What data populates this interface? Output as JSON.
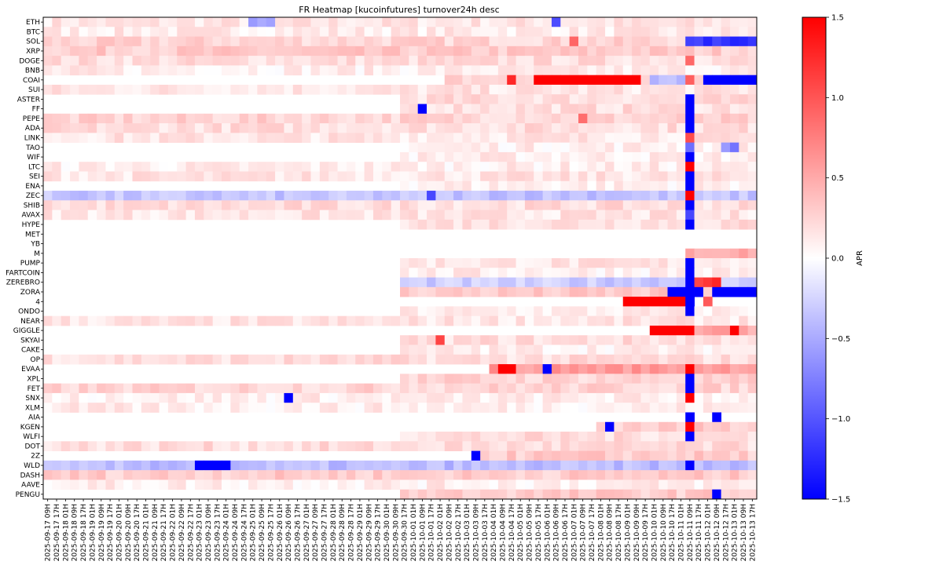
{
  "chart_data": {
    "type": "heatmap",
    "title": "FR Heatmap [kucoinfutures] turnover24h desc",
    "colorbar_label": "APR",
    "colormap": "bwr",
    "colors": {
      "low": "#0000ff",
      "mid": "#ffffff",
      "high": "#ff0000",
      "frame": "#000000"
    },
    "vmin": -1.5,
    "vmax": 1.5,
    "colorbar_ticks": [
      "-1.5",
      "-1.0",
      "-0.5",
      "0.0",
      "0.5",
      "1.0",
      "1.5"
    ],
    "rows": [
      "ETH",
      "BTC",
      "SOL",
      "XRP",
      "DOGE",
      "BNB",
      "COAI",
      "SUI",
      "ASTER",
      "FF",
      "PEPE",
      "ADA",
      "LINK",
      "TAO",
      "WIF",
      "LTC",
      "SEI",
      "ENA",
      "ZEC",
      "SHIB",
      "AVAX",
      "HYPE",
      "MET",
      "YB",
      "M",
      "PUMP",
      "FARTCOIN",
      "ZEREBRO",
      "ZORA",
      "4",
      "ONDO",
      "NEAR",
      "GIGGLE",
      "SKYAI",
      "CAKE",
      "OP",
      "EVAA",
      "XPL",
      "FET",
      "SNX",
      "XLM",
      "AIA",
      "KGEN",
      "WLFI",
      "DOT",
      "2Z",
      "WLD",
      "DASH",
      "AAVE",
      "PENGU"
    ],
    "x_ticks": [
      "2025-09-17 09H",
      "2025-09-17 17H",
      "2025-09-18 01H",
      "2025-09-18 09H",
      "2025-09-18 17H",
      "2025-09-19 01H",
      "2025-09-19 09H",
      "2025-09-19 17H",
      "2025-09-20 01H",
      "2025-09-20 09H",
      "2025-09-20 17H",
      "2025-09-21 01H",
      "2025-09-21 09H",
      "2025-09-21 17H",
      "2025-09-22 01H",
      "2025-09-22 09H",
      "2025-09-22 17H",
      "2025-09-23 01H",
      "2025-09-23 09H",
      "2025-09-23 17H",
      "2025-09-24 01H",
      "2025-09-24 09H",
      "2025-09-24 17H",
      "2025-09-25 01H",
      "2025-09-25 09H",
      "2025-09-25 17H",
      "2025-09-26 01H",
      "2025-09-26 09H",
      "2025-09-26 17H",
      "2025-09-27 01H",
      "2025-09-27 09H",
      "2025-09-27 17H",
      "2025-09-28 01H",
      "2025-09-28 09H",
      "2025-09-28 17H",
      "2025-09-29 01H",
      "2025-09-29 09H",
      "2025-09-29 17H",
      "2025-09-30 01H",
      "2025-09-30 09H",
      "2025-09-30 17H",
      "2025-10-01 01H",
      "2025-10-01 09H",
      "2025-10-01 17H",
      "2025-10-02 01H",
      "2025-10-02 09H",
      "2025-10-02 17H",
      "2025-10-03 01H",
      "2025-10-03 09H",
      "2025-10-03 17H",
      "2025-10-04 01H",
      "2025-10-04 09H",
      "2025-10-04 17H",
      "2025-10-05 01H",
      "2025-10-05 09H",
      "2025-10-05 17H",
      "2025-10-06 01H",
      "2025-10-06 09H",
      "2025-10-06 17H",
      "2025-10-07 01H",
      "2025-10-07 09H",
      "2025-10-07 17H",
      "2025-10-08 01H",
      "2025-10-08 09H",
      "2025-10-08 17H",
      "2025-10-09 01H",
      "2025-10-09 09H",
      "2025-10-09 17H",
      "2025-10-10 01H",
      "2025-10-10 09H",
      "2025-10-10 17H",
      "2025-10-11 01H",
      "2025-10-11 09H",
      "2025-10-11 17H",
      "2025-10-12 01H",
      "2025-10-12 09H",
      "2025-10-12 17H",
      "2025-10-13 01H",
      "2025-10-13 09H",
      "2025-10-13 17H"
    ],
    "values_note": "approximate per-cell APR values estimated from colour; null = no data",
    "segments": [
      {
        "row": "ETH",
        "from": 0,
        "to": 79,
        "value": 0.15
      },
      {
        "row": "ETH",
        "from": 57,
        "to": 57,
        "value": -1.0
      },
      {
        "row": "ETH",
        "from": 23,
        "to": 25,
        "value": -0.6
      },
      {
        "row": "BTC",
        "from": 0,
        "to": 79,
        "value": 0.12
      },
      {
        "row": "SOL",
        "from": 0,
        "to": 79,
        "value": 0.25
      },
      {
        "row": "SOL",
        "from": 59,
        "to": 59,
        "value": 1.0
      },
      {
        "row": "SOL",
        "from": 72,
        "to": 79,
        "value": -1.2
      },
      {
        "row": "XRP",
        "from": 0,
        "to": 79,
        "value": 0.3
      },
      {
        "row": "DOGE",
        "from": 0,
        "to": 79,
        "value": 0.2
      },
      {
        "row": "DOGE",
        "from": 72,
        "to": 72,
        "value": 1.0
      },
      {
        "row": "BNB",
        "from": 0,
        "to": 79,
        "value": 0.1
      },
      {
        "row": "COAI",
        "from": 45,
        "to": 79,
        "value": 0.25
      },
      {
        "row": "COAI",
        "from": 52,
        "to": 52,
        "value": 1.2
      },
      {
        "row": "COAI",
        "from": 55,
        "to": 66,
        "value": 1.5
      },
      {
        "row": "COAI",
        "from": 68,
        "to": 71,
        "value": -0.4
      },
      {
        "row": "COAI",
        "from": 72,
        "to": 72,
        "value": 1.0
      },
      {
        "row": "COAI",
        "from": 74,
        "to": 79,
        "value": -1.5
      },
      {
        "row": "SUI",
        "from": 0,
        "to": 79,
        "value": 0.15
      },
      {
        "row": "ASTER",
        "from": 40,
        "to": 79,
        "value": 0.2
      },
      {
        "row": "ASTER",
        "from": 72,
        "to": 72,
        "value": -1.5
      },
      {
        "row": "FF",
        "from": 40,
        "to": 79,
        "value": 0.2
      },
      {
        "row": "FF",
        "from": 42,
        "to": 42,
        "value": -1.5
      },
      {
        "row": "FF",
        "from": 72,
        "to": 72,
        "value": -1.5
      },
      {
        "row": "PEPE",
        "from": 0,
        "to": 79,
        "value": 0.25
      },
      {
        "row": "PEPE",
        "from": 60,
        "to": 60,
        "value": 0.8
      },
      {
        "row": "PEPE",
        "from": 72,
        "to": 72,
        "value": -1.5
      },
      {
        "row": "ADA",
        "from": 0,
        "to": 79,
        "value": 0.2
      },
      {
        "row": "ADA",
        "from": 72,
        "to": 72,
        "value": -1.5
      },
      {
        "row": "LINK",
        "from": 0,
        "to": 79,
        "value": 0.15
      },
      {
        "row": "LINK",
        "from": 72,
        "to": 72,
        "value": 1.0
      },
      {
        "row": "TAO",
        "from": 40,
        "to": 79,
        "value": 0.1
      },
      {
        "row": "TAO",
        "from": 72,
        "to": 72,
        "value": -0.8
      },
      {
        "row": "TAO",
        "from": 76,
        "to": 77,
        "value": -0.7
      },
      {
        "row": "WIF",
        "from": 40,
        "to": 79,
        "value": 0.1
      },
      {
        "row": "WIF",
        "from": 72,
        "to": 72,
        "value": -1.5
      },
      {
        "row": "LTC",
        "from": 0,
        "to": 79,
        "value": 0.1
      },
      {
        "row": "LTC",
        "from": 72,
        "to": 72,
        "value": 1.5
      },
      {
        "row": "SEI",
        "from": 0,
        "to": 79,
        "value": 0.15
      },
      {
        "row": "SEI",
        "from": 72,
        "to": 72,
        "value": -1.5
      },
      {
        "row": "ENA",
        "from": 40,
        "to": 79,
        "value": 0.1
      },
      {
        "row": "ENA",
        "from": 72,
        "to": 72,
        "value": -1.5
      },
      {
        "row": "ZEC",
        "from": 0,
        "to": 79,
        "value": -0.35
      },
      {
        "row": "ZEC",
        "from": 72,
        "to": 72,
        "value": 1.5
      },
      {
        "row": "ZEC",
        "from": 43,
        "to": 43,
        "value": -1.0
      },
      {
        "row": "SHIB",
        "from": 0,
        "to": 79,
        "value": 0.2
      },
      {
        "row": "SHIB",
        "from": 72,
        "to": 72,
        "value": -1.5
      },
      {
        "row": "AVAX",
        "from": 0,
        "to": 79,
        "value": 0.15
      },
      {
        "row": "AVAX",
        "from": 72,
        "to": 72,
        "value": -1.2
      },
      {
        "row": "HYPE",
        "from": 40,
        "to": 79,
        "value": 0.2
      },
      {
        "row": "HYPE",
        "from": 72,
        "to": 72,
        "value": -1.5
      },
      {
        "row": "M",
        "from": 72,
        "to": 79,
        "value": 0.5
      },
      {
        "row": "PUMP",
        "from": 40,
        "to": 79,
        "value": 0.15
      },
      {
        "row": "PUMP",
        "from": 72,
        "to": 72,
        "value": -1.5
      },
      {
        "row": "FARTCOIN",
        "from": 40,
        "to": 79,
        "value": 0.1
      },
      {
        "row": "FARTCOIN",
        "from": 72,
        "to": 72,
        "value": -1.5
      },
      {
        "row": "ZEREBRO",
        "from": 40,
        "to": 79,
        "value": -0.3
      },
      {
        "row": "ZEREBRO",
        "from": 72,
        "to": 72,
        "value": -1.5
      },
      {
        "row": "ZEREBRO",
        "from": 73,
        "to": 75,
        "value": 1.2
      },
      {
        "row": "ZORA",
        "from": 40,
        "to": 79,
        "value": 0.3
      },
      {
        "row": "ZORA",
        "from": 70,
        "to": 73,
        "value": -1.5
      },
      {
        "row": "ZORA",
        "from": 75,
        "to": 79,
        "value": -1.5
      },
      {
        "row": "4",
        "from": 65,
        "to": 71,
        "value": 1.5
      },
      {
        "row": "4",
        "from": 72,
        "to": 72,
        "value": -1.5
      },
      {
        "row": "4",
        "from": 74,
        "to": 74,
        "value": 1.0
      },
      {
        "row": "ONDO",
        "from": 40,
        "to": 79,
        "value": 0.1
      },
      {
        "row": "ONDO",
        "from": 72,
        "to": 72,
        "value": -1.5
      },
      {
        "row": "NEAR",
        "from": 0,
        "to": 79,
        "value": 0.15
      },
      {
        "row": "GIGGLE",
        "from": 68,
        "to": 79,
        "value": 0.5
      },
      {
        "row": "GIGGLE",
        "from": 68,
        "to": 71,
        "value": 1.5
      },
      {
        "row": "GIGGLE",
        "from": 72,
        "to": 72,
        "value": 1.5
      },
      {
        "row": "GIGGLE",
        "from": 77,
        "to": 77,
        "value": 1.5
      },
      {
        "row": "SKYAI",
        "from": 40,
        "to": 79,
        "value": 0.2
      },
      {
        "row": "SKYAI",
        "from": 44,
        "to": 44,
        "value": 1.0
      },
      {
        "row": "CAKE",
        "from": 40,
        "to": 79,
        "value": 0.1
      },
      {
        "row": "OP",
        "from": 0,
        "to": 79,
        "value": 0.2
      },
      {
        "row": "EVAA",
        "from": 50,
        "to": 79,
        "value": 0.6
      },
      {
        "row": "EVAA",
        "from": 51,
        "to": 52,
        "value": 1.5
      },
      {
        "row": "EVAA",
        "from": 56,
        "to": 56,
        "value": -1.5
      },
      {
        "row": "EVAA",
        "from": 72,
        "to": 72,
        "value": 1.5
      },
      {
        "row": "XPL",
        "from": 40,
        "to": 79,
        "value": 0.25
      },
      {
        "row": "XPL",
        "from": 72,
        "to": 72,
        "value": -1.5
      },
      {
        "row": "FET",
        "from": 0,
        "to": 79,
        "value": 0.25
      },
      {
        "row": "FET",
        "from": 72,
        "to": 72,
        "value": -1.5
      },
      {
        "row": "SNX",
        "from": 0,
        "to": 79,
        "value": 0.1
      },
      {
        "row": "SNX",
        "from": 27,
        "to": 27,
        "value": -1.5
      },
      {
        "row": "SNX",
        "from": 72,
        "to": 72,
        "value": 1.5
      },
      {
        "row": "XLM",
        "from": 0,
        "to": 79,
        "value": 0.1
      },
      {
        "row": "AIA",
        "from": 72,
        "to": 72,
        "value": -1.5
      },
      {
        "row": "AIA",
        "from": 75,
        "to": 75,
        "value": -1.5
      },
      {
        "row": "KGEN",
        "from": 62,
        "to": 79,
        "value": 0.3
      },
      {
        "row": "KGEN",
        "from": 63,
        "to": 63,
        "value": -1.5
      },
      {
        "row": "KGEN",
        "from": 72,
        "to": 72,
        "value": 1.5
      },
      {
        "row": "WLFI",
        "from": 40,
        "to": 79,
        "value": 0.2
      },
      {
        "row": "WLFI",
        "from": 72,
        "to": 72,
        "value": -1.5
      },
      {
        "row": "DOT",
        "from": 0,
        "to": 79,
        "value": 0.2
      },
      {
        "row": "2Z",
        "from": 48,
        "to": 79,
        "value": 0.3
      },
      {
        "row": "2Z",
        "from": 48,
        "to": 48,
        "value": -1.5
      },
      {
        "row": "WLD",
        "from": 0,
        "to": 79,
        "value": -0.4
      },
      {
        "row": "WLD",
        "from": 17,
        "to": 20,
        "value": -1.5
      },
      {
        "row": "WLD",
        "from": 72,
        "to": 72,
        "value": -1.5
      },
      {
        "row": "DASH",
        "from": 0,
        "to": 79,
        "value": 0.3
      },
      {
        "row": "AAVE",
        "from": 0,
        "to": 79,
        "value": 0.1
      },
      {
        "row": "PENGU",
        "from": 40,
        "to": 79,
        "value": 0.3
      },
      {
        "row": "PENGU",
        "from": 75,
        "to": 75,
        "value": -1.5
      }
    ]
  }
}
